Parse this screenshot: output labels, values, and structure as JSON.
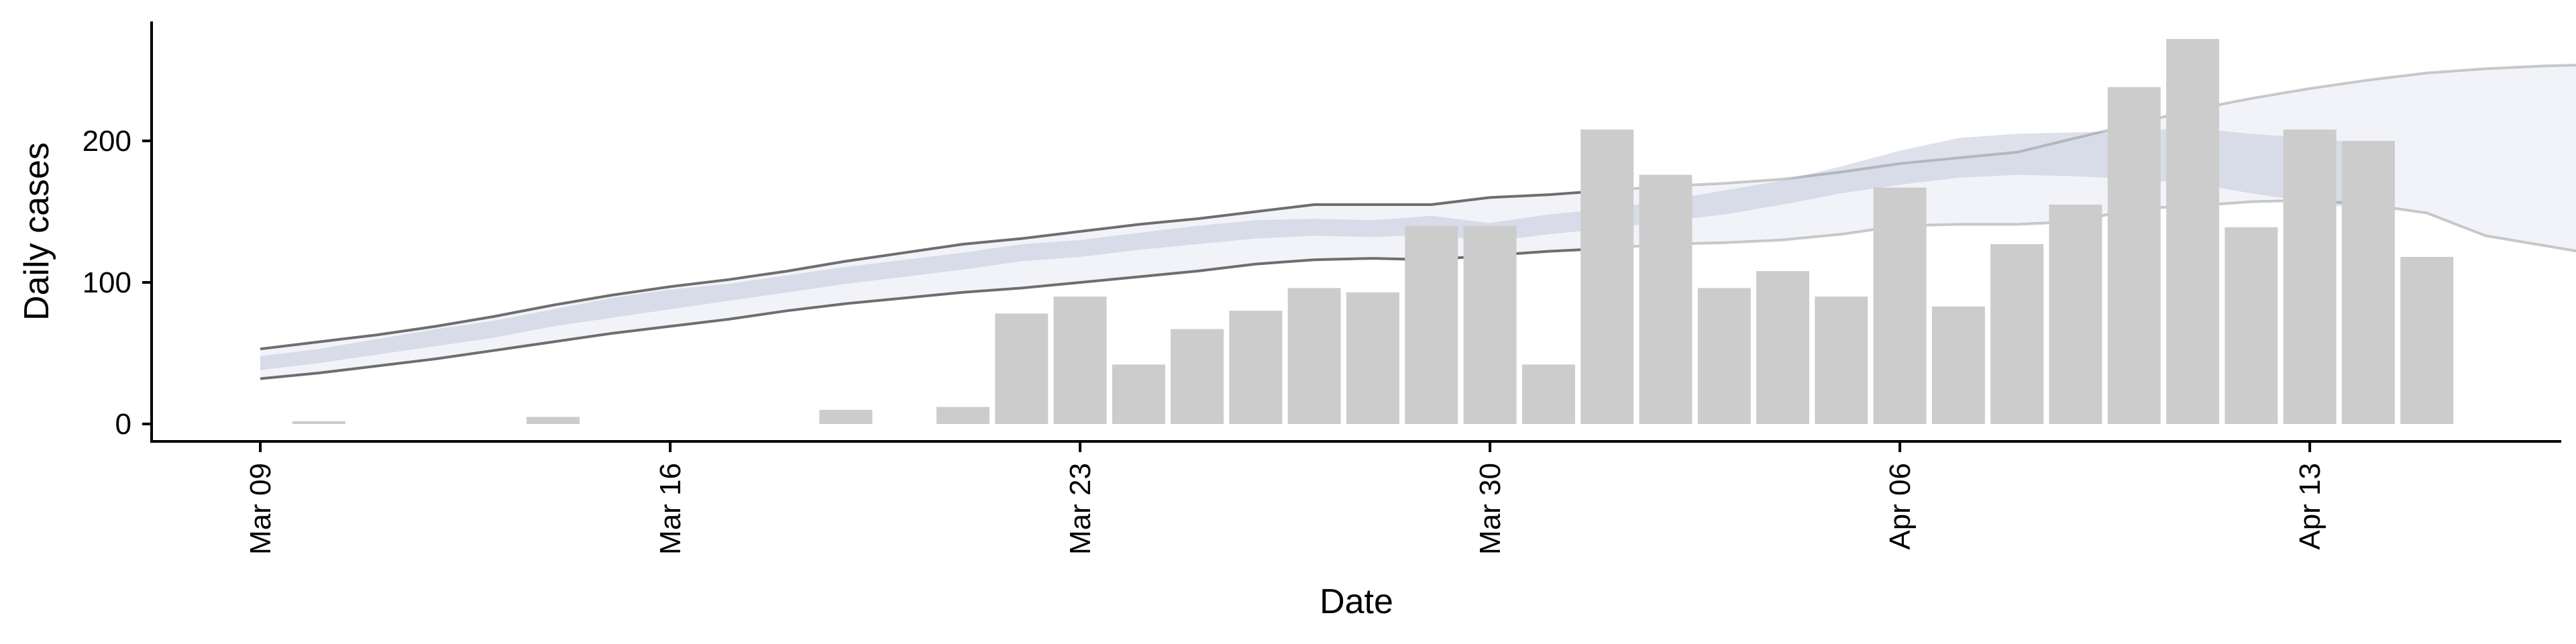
{
  "chart_data": {
    "type": "bar",
    "xlabel": "Date",
    "ylabel": "Daily cases",
    "ylim": [
      -12,
      288
    ],
    "y_ticks": [
      0,
      100,
      200
    ],
    "x_ticks": [
      {
        "label": "Mar 09",
        "day": 0
      },
      {
        "label": "Mar 16",
        "day": 7
      },
      {
        "label": "Mar 23",
        "day": 14
      },
      {
        "label": "Mar 30",
        "day": 21
      },
      {
        "label": "Apr 06",
        "day": 28
      },
      {
        "label": "Apr 13",
        "day": 35
      }
    ],
    "bars": {
      "name": "Observed daily cases",
      "color": "#cccccc",
      "start_date": "Mar 10",
      "values": [
        2,
        0,
        0,
        0,
        5,
        0,
        0,
        0,
        0,
        10,
        0,
        12,
        78,
        90,
        42,
        67,
        80,
        96,
        93,
        140,
        140,
        42,
        208,
        176,
        96,
        108,
        90,
        167,
        83,
        127,
        155,
        238,
        272,
        139,
        208,
        200,
        118
      ]
    },
    "forecast": {
      "start_date": "Mar 09",
      "observed_until": "Apr 01",
      "band_color": "#c3c8dd",
      "outer_line_color": "#6e6e6e",
      "median": [
        43,
        48,
        55,
        61,
        67,
        75,
        82,
        88,
        93,
        99,
        105,
        110,
        115,
        121,
        124,
        129,
        133,
        137,
        138,
        137,
        140,
        135,
        141,
        145,
        151,
        157,
        163,
        172,
        181,
        188,
        192,
        195,
        193,
        190,
        186,
        181,
        176
      ],
      "inner_lower": [
        38,
        43,
        49,
        55,
        61,
        69,
        75,
        81,
        87,
        93,
        99,
        104,
        109,
        115,
        118,
        123,
        127,
        131,
        133,
        132,
        134,
        129,
        134,
        138,
        143,
        148,
        155,
        163,
        169,
        174,
        176,
        175,
        173,
        170,
        163,
        157,
        151
      ],
      "inner_upper": [
        48,
        53,
        60,
        67,
        73,
        81,
        89,
        95,
        99,
        105,
        111,
        116,
        121,
        127,
        130,
        135,
        140,
        144,
        145,
        144,
        147,
        142,
        148,
        152,
        158,
        165,
        172,
        182,
        193,
        202,
        205,
        206,
        207,
        209,
        205,
        202,
        198
      ],
      "outer_lower": [
        32,
        36,
        41,
        46,
        52,
        58,
        64,
        69,
        74,
        80,
        85,
        89,
        93,
        96,
        100,
        104,
        108,
        113,
        116,
        117,
        116,
        119,
        122,
        124,
        127,
        128,
        130,
        134,
        140,
        141,
        141,
        143,
        152,
        154,
        157,
        158,
        155,
        149,
        133,
        126,
        119
      ],
      "outer_upper": [
        53,
        58,
        63,
        69,
        76,
        84,
        91,
        97,
        102,
        108,
        115,
        121,
        127,
        131,
        136,
        141,
        145,
        150,
        155,
        155,
        155,
        160,
        162,
        165,
        168,
        170,
        173,
        178,
        184,
        188,
        192,
        202,
        212,
        222,
        230,
        237,
        243,
        248,
        251,
        253,
        254
      ]
    }
  }
}
